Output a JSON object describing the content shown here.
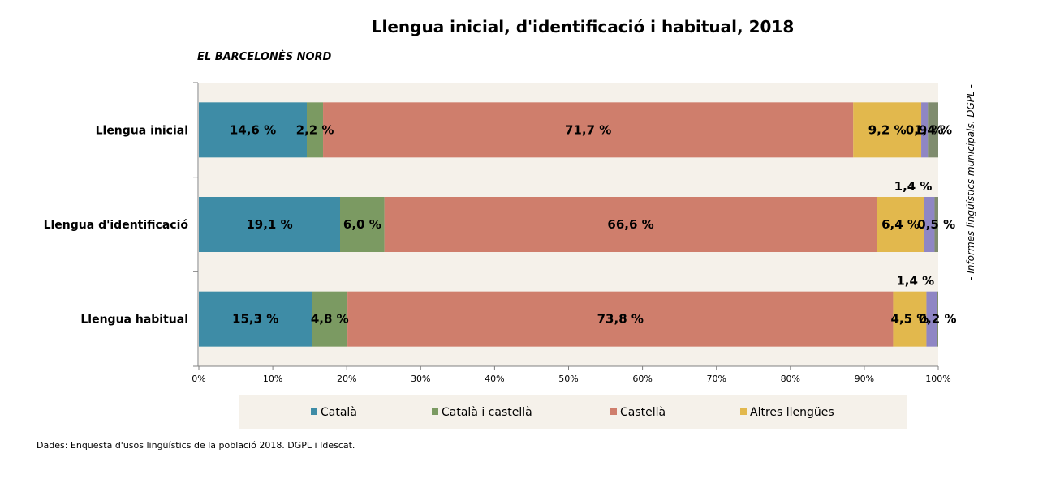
{
  "chart_data": {
    "type": "bar",
    "orientation": "horizontal",
    "stacked": true,
    "title": "Llengua inicial, d'identificació i habitual, 2018",
    "subtitle": "EL BARCELONÈS NORD",
    "categories": [
      "Llengua inicial",
      "Llengua d'identificació",
      "Llengua habitual"
    ],
    "series": [
      {
        "name": "Català",
        "color": "#3e8ca6",
        "values": [
          14.6,
          19.1,
          15.3
        ],
        "labels": [
          "14,6 %",
          "19,1 %",
          "15,3 %"
        ]
      },
      {
        "name": "Català i castellà",
        "color": "#7b9a62",
        "values": [
          2.2,
          6.0,
          4.8
        ],
        "labels": [
          "2,2 %",
          "6,0 %",
          "4,8 %"
        ]
      },
      {
        "name": "Castellà",
        "color": "#cf7e6c",
        "values": [
          71.7,
          66.6,
          73.8
        ],
        "labels": [
          "71,7 %",
          "66,6 %",
          "73,8 %"
        ]
      },
      {
        "name": "Altres llengües",
        "color": "#e2b84d",
        "values": [
          9.2,
          6.4,
          4.5
        ],
        "labels": [
          "9,2 %",
          "6,4 %",
          "4,5 %"
        ]
      },
      {
        "name": "",
        "color": "#8f86c4",
        "values": [
          0.9,
          1.4,
          1.4
        ],
        "labels": [
          "0,9 %",
          "1,4 %",
          "1,4 %"
        ]
      },
      {
        "name": "",
        "color": "#7f8c6e",
        "values": [
          1.4,
          0.5,
          0.2
        ],
        "labels": [
          "1,4 %",
          "0,5 %",
          "0,2 %"
        ]
      }
    ],
    "xlim": [
      0,
      100
    ],
    "ticks": [
      "0%",
      "10%",
      "20%",
      "30%",
      "40%",
      "50%",
      "60%",
      "70%",
      "80%",
      "90%",
      "100%"
    ],
    "legend_position": "bottom",
    "plot_background": "#f5f1ea",
    "side_note": "- Informes lingüístics municipals. DGPL -",
    "source": "Dades: Enquesta d'usos lingüístics de la població 2018. DGPL i Idescat."
  }
}
